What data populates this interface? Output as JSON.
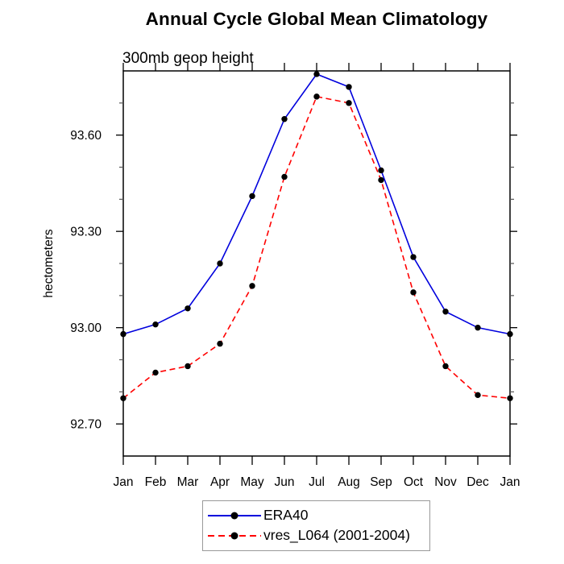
{
  "chart_data": {
    "type": "line",
    "title": "Annual Cycle Global Mean Climatology",
    "subtitle": "300mb geop height",
    "ylabel": "hectometers",
    "categories": [
      "Jan",
      "Feb",
      "Mar",
      "Apr",
      "May",
      "Jun",
      "Jul",
      "Aug",
      "Sep",
      "Oct",
      "Nov",
      "Dec",
      "Jan"
    ],
    "series": [
      {
        "name": "ERA40",
        "color": "#0000dd",
        "line_style": "solid",
        "marker": "black-filled-circle",
        "values": [
          92.98,
          93.01,
          93.06,
          93.2,
          93.41,
          93.65,
          93.79,
          93.75,
          93.49,
          93.22,
          93.05,
          93.0,
          92.98
        ]
      },
      {
        "name": "vres_L064 (2001-2004)",
        "color": "#ff0000",
        "line_style": "dashed",
        "marker": "black-filled-circle",
        "values": [
          92.78,
          92.86,
          92.88,
          92.95,
          93.13,
          93.47,
          93.72,
          93.7,
          93.46,
          93.11,
          92.88,
          92.79,
          92.78
        ]
      }
    ],
    "ylim": [
      92.6,
      93.8
    ],
    "yticks_major": [
      {
        "value": 93.6,
        "label": "93.60"
      },
      {
        "value": 93.3,
        "label": "93.30"
      },
      {
        "value": 93.0,
        "label": "93.00"
      },
      {
        "value": 92.7,
        "label": "92.70"
      }
    ],
    "yticks_minor": [
      93.7,
      93.5,
      93.4,
      93.2,
      93.1,
      92.9,
      92.8
    ],
    "grid": false,
    "legend_position": "bottom-center",
    "marker_color": "#000000",
    "frame_color": "#000000",
    "minor_tick_color": "#555555"
  }
}
